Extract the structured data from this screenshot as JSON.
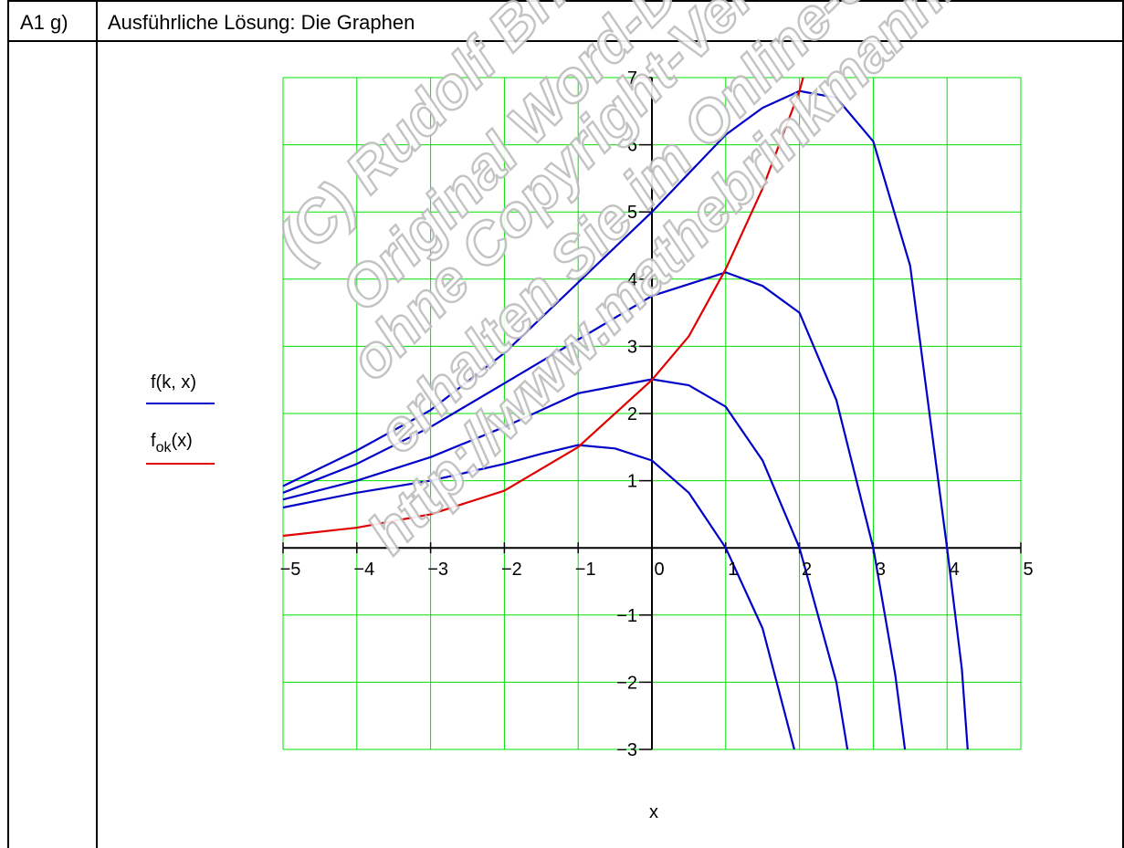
{
  "table": {
    "label": "A1 g)",
    "title": "Ausführliche Lösung: Die Graphen"
  },
  "watermark_lines": [
    "(C) Rudolf Brinkmann",
    "Original Word-Dokument",
    "ohne Copyright-Vermerk",
    "erhalten Sie im Online-Shop",
    "http://www.mathebrinkmann.de"
  ],
  "chart_data": {
    "type": "line",
    "title": "",
    "xlabel": "x",
    "ylabel": "",
    "xlim": [
      -5,
      5
    ],
    "ylim": [
      -3,
      7
    ],
    "grid": true,
    "x_ticks": [
      -5,
      -4,
      -3,
      -2,
      -1,
      0,
      1,
      2,
      3,
      4,
      5
    ],
    "y_ticks": [
      -3,
      -2,
      -1,
      1,
      2,
      3,
      4,
      5,
      6,
      7
    ],
    "legend": {
      "placement": "left",
      "entries": [
        {
          "name": "f(k, x)",
          "color": "#0000c8"
        },
        {
          "name": "f_ok(x)",
          "name_main": "f",
          "name_sub": "ok",
          "name_suffix": "(x)",
          "color": "#e00000"
        }
      ]
    },
    "colors": {
      "grid": "#00e000",
      "family": "#0000c8",
      "locus": "#e00000",
      "axis": "#000000"
    },
    "series": [
      {
        "group": "f(k, x)",
        "k": 1,
        "x": [
          -5,
          -4,
          -3,
          -2,
          -1.5,
          -1,
          -0.5,
          0,
          0.5,
          1,
          1.5,
          1.93
        ],
        "y": [
          0.6,
          0.82,
          1.0,
          1.25,
          1.4,
          1.53,
          1.48,
          1.3,
          0.82,
          0.0,
          -1.2,
          -3.0
        ]
      },
      {
        "group": "f(k, x)",
        "k": 2,
        "x": [
          -5,
          -4,
          -3,
          -2,
          -1,
          0,
          0.5,
          1,
          1.5,
          2,
          2.5,
          2.65
        ],
        "y": [
          0.72,
          1.0,
          1.35,
          1.8,
          2.3,
          2.51,
          2.42,
          2.1,
          1.3,
          0.0,
          -2.0,
          -3.0
        ]
      },
      {
        "group": "f(k, x)",
        "k": 3,
        "x": [
          -5,
          -4,
          -3,
          -2,
          -1,
          0,
          1,
          1.5,
          2,
          2.5,
          3,
          3.3,
          3.43
        ],
        "y": [
          0.82,
          1.25,
          1.8,
          2.45,
          3.1,
          3.75,
          4.1,
          3.9,
          3.5,
          2.2,
          0.0,
          -1.9,
          -3.0
        ]
      },
      {
        "group": "f(k, x)",
        "k": 4,
        "x": [
          -5,
          -4,
          -3,
          -2,
          -1,
          0,
          1,
          1.5,
          2,
          2.5,
          3,
          3.5,
          4,
          4.2,
          4.28
        ],
        "y": [
          0.92,
          1.45,
          2.05,
          2.9,
          3.95,
          5.0,
          6.15,
          6.55,
          6.8,
          6.7,
          6.05,
          4.2,
          0.0,
          -1.8,
          -3.0
        ]
      },
      {
        "group": "f_ok(x)",
        "x": [
          -5,
          -4,
          -3,
          -2,
          -1,
          0,
          0.5,
          1,
          1.5,
          2,
          2.05
        ],
        "y": [
          0.18,
          0.3,
          0.5,
          0.85,
          1.5,
          2.5,
          3.15,
          4.15,
          5.35,
          6.8,
          7.0
        ]
      }
    ]
  }
}
